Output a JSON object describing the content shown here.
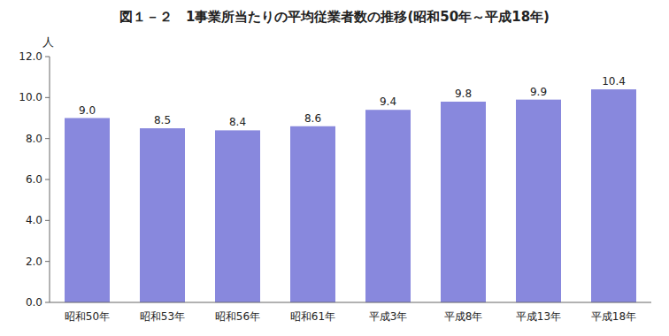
{
  "chart_data": {
    "type": "bar",
    "title": "図１－２　1事業所当たりの平均従業者数の推移(昭和50年～平成18年)",
    "ylabel": "人",
    "categories": [
      "昭和50年",
      "昭和53年",
      "昭和56年",
      "昭和61年",
      "平成3年",
      "平成8年",
      "平成13年",
      "平成18年"
    ],
    "values": [
      9.0,
      8.5,
      8.4,
      8.6,
      9.4,
      9.8,
      9.9,
      10.4
    ],
    "value_labels": [
      "9.0",
      "8.5",
      "8.4",
      "8.6",
      "9.4",
      "9.8",
      "9.9",
      "10.4"
    ],
    "data_labels": true,
    "color": "#8888dd",
    "ylim": [
      0.0,
      12.0
    ],
    "yticks": [
      {
        "value": 0.0,
        "label": "0.0"
      },
      {
        "value": 2.0,
        "label": "2.0"
      },
      {
        "value": 4.0,
        "label": "4.0"
      },
      {
        "value": 6.0,
        "label": "6.0"
      },
      {
        "value": 8.0,
        "label": "8.0"
      },
      {
        "value": 10.0,
        "label": "10.0"
      },
      {
        "value": 12.0,
        "label": "12.0"
      }
    ],
    "grid": false
  }
}
